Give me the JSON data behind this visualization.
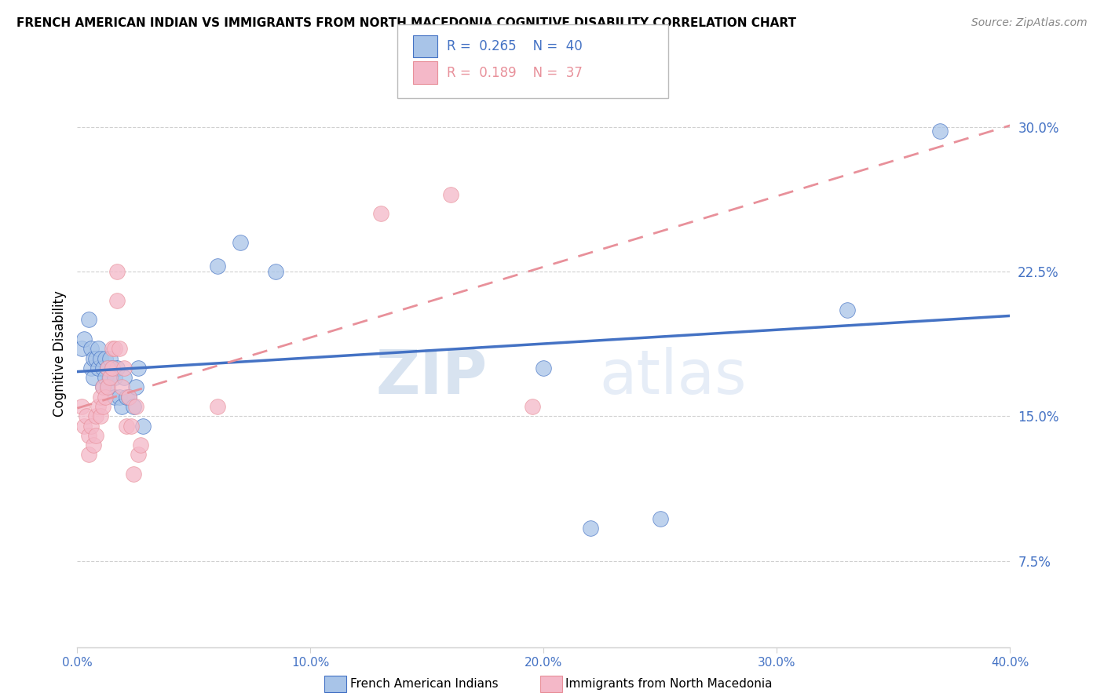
{
  "title": "FRENCH AMERICAN INDIAN VS IMMIGRANTS FROM NORTH MACEDONIA COGNITIVE DISABILITY CORRELATION CHART",
  "source": "Source: ZipAtlas.com",
  "ylabel": "Cognitive Disability",
  "ytick_labels": [
    "7.5%",
    "15.0%",
    "22.5%",
    "30.0%"
  ],
  "ytick_values": [
    0.075,
    0.15,
    0.225,
    0.3
  ],
  "xlim": [
    0.0,
    0.4
  ],
  "ylim": [
    0.03,
    0.335
  ],
  "legend_blue_R": "0.265",
  "legend_blue_N": "40",
  "legend_pink_R": "0.189",
  "legend_pink_N": "37",
  "legend_label_blue": "French American Indians",
  "legend_label_pink": "Immigrants from North Macedonia",
  "watermark_zip": "ZIP",
  "watermark_atlas": "atlas",
  "blue_color": "#a8c4e8",
  "pink_color": "#f4b8c8",
  "line_blue": "#4472c4",
  "line_pink": "#e8909a",
  "axis_color": "#4472c4",
  "grid_color": "#d0d0d0",
  "blue_scatter_x": [
    0.002,
    0.003,
    0.005,
    0.006,
    0.006,
    0.007,
    0.007,
    0.008,
    0.009,
    0.009,
    0.01,
    0.011,
    0.011,
    0.012,
    0.012,
    0.013,
    0.013,
    0.014,
    0.014,
    0.015,
    0.016,
    0.016,
    0.017,
    0.018,
    0.019,
    0.02,
    0.021,
    0.022,
    0.024,
    0.025,
    0.026,
    0.028,
    0.06,
    0.07,
    0.085,
    0.2,
    0.22,
    0.25,
    0.33,
    0.37
  ],
  "blue_scatter_y": [
    0.185,
    0.19,
    0.2,
    0.175,
    0.185,
    0.18,
    0.17,
    0.18,
    0.175,
    0.185,
    0.18,
    0.175,
    0.165,
    0.18,
    0.17,
    0.175,
    0.165,
    0.18,
    0.17,
    0.175,
    0.17,
    0.16,
    0.175,
    0.16,
    0.155,
    0.17,
    0.16,
    0.16,
    0.155,
    0.165,
    0.175,
    0.145,
    0.228,
    0.24,
    0.225,
    0.175,
    0.092,
    0.097,
    0.205,
    0.298
  ],
  "pink_scatter_x": [
    0.002,
    0.003,
    0.004,
    0.005,
    0.005,
    0.006,
    0.007,
    0.008,
    0.008,
    0.009,
    0.01,
    0.01,
    0.011,
    0.011,
    0.012,
    0.013,
    0.013,
    0.014,
    0.015,
    0.015,
    0.016,
    0.017,
    0.017,
    0.018,
    0.019,
    0.02,
    0.021,
    0.022,
    0.023,
    0.024,
    0.025,
    0.026,
    0.027,
    0.06,
    0.13,
    0.16,
    0.195
  ],
  "pink_scatter_y": [
    0.155,
    0.145,
    0.15,
    0.14,
    0.13,
    0.145,
    0.135,
    0.15,
    0.14,
    0.155,
    0.15,
    0.16,
    0.155,
    0.165,
    0.16,
    0.175,
    0.165,
    0.17,
    0.185,
    0.175,
    0.185,
    0.225,
    0.21,
    0.185,
    0.165,
    0.175,
    0.145,
    0.16,
    0.145,
    0.12,
    0.155,
    0.13,
    0.135,
    0.155,
    0.255,
    0.265,
    0.155
  ],
  "xtick_values": [
    0.0,
    0.1,
    0.2,
    0.3,
    0.4
  ],
  "xtick_labels": [
    "0.0%",
    "10.0%",
    "20.0%",
    "30.0%",
    "40.0%"
  ]
}
